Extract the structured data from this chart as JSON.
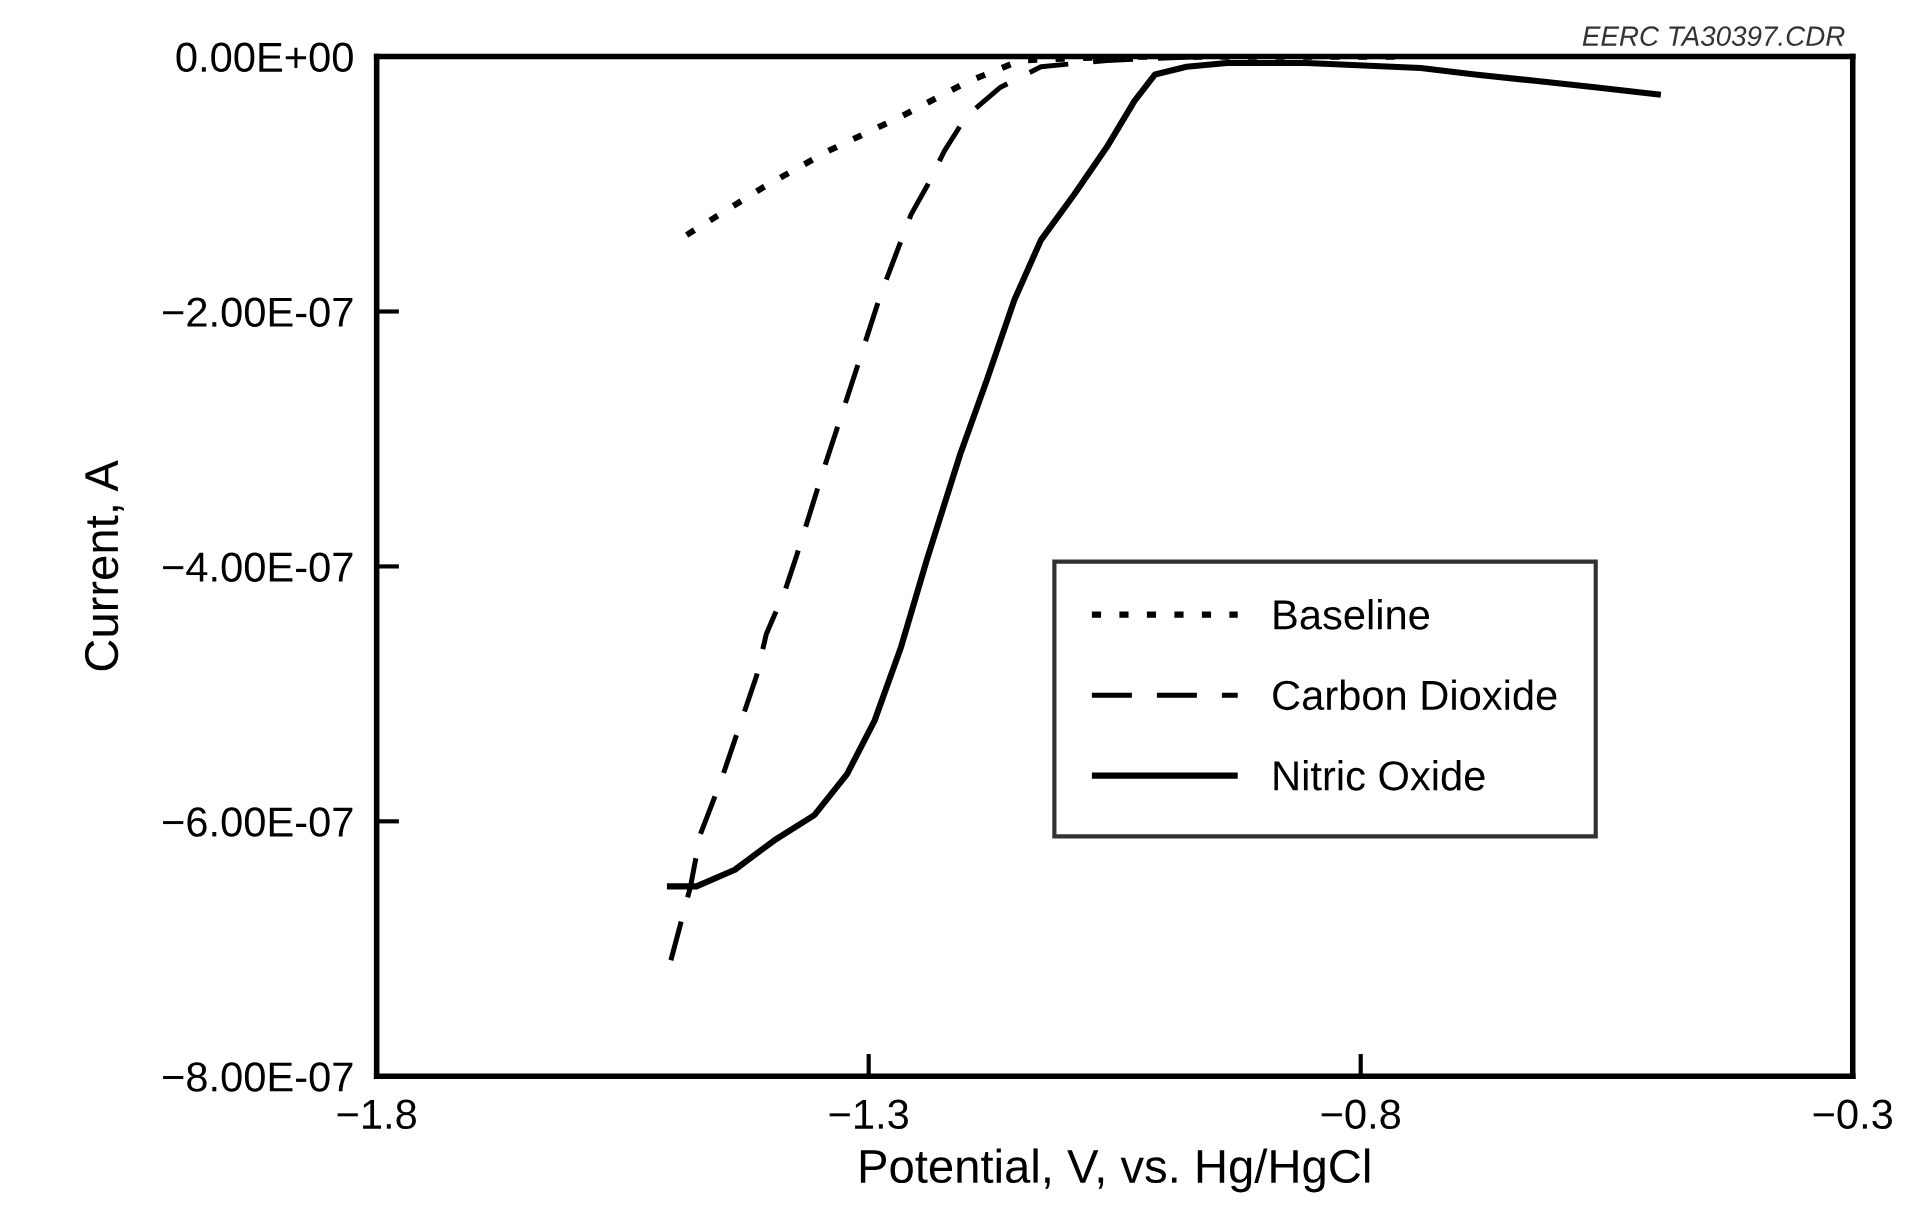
{
  "chart_data": {
    "type": "line",
    "xlabel": "Potential, V, vs. Hg/HgCl",
    "ylabel": "Current, A",
    "annotations": [
      "EERC TA30397.CDR"
    ],
    "xlim": [
      -1.8,
      -0.3
    ],
    "xticks": [
      {
        "value": -1.8,
        "label": "−1.8"
      },
      {
        "value": -1.3,
        "label": "−1.3"
      },
      {
        "value": -0.8,
        "label": "−0.8"
      },
      {
        "value": -0.3,
        "label": "−0.3"
      }
    ],
    "ylim": [
      -8e-07,
      0
    ],
    "yticks": [
      {
        "value": 0,
        "label": "0.00E+00"
      },
      {
        "value": -2e-07,
        "label": "−2.00E-07"
      },
      {
        "value": -4e-07,
        "label": "−4.00E-07"
      },
      {
        "value": -6e-07,
        "label": "−6.00E-07"
      },
      {
        "value": -8e-07,
        "label": "−8.00E-07"
      }
    ],
    "grid": false,
    "legend": "right",
    "series": [
      {
        "name": "Baseline",
        "color": "#000000",
        "line_style": "dotted",
        "x": [
          -1.485,
          -1.406,
          -1.341,
          -1.267,
          -1.2,
          -1.146,
          -1.044,
          -0.759
        ],
        "values": [
          -1.4e-07,
          -1.02e-07,
          -7.4e-08,
          -4.7e-08,
          -2e-08,
          -3e-09,
          0,
          0
        ]
      },
      {
        "name": "Carbon Dioxide",
        "color": "#000000",
        "line_style": "dashed",
        "x": [
          -1.501,
          -1.481,
          -1.471,
          -1.45,
          -1.414,
          -1.404,
          -1.385,
          -1.373,
          -1.345,
          -1.314,
          -1.288,
          -1.257,
          -1.241,
          -1.223,
          -1.201,
          -1.166,
          -1.125,
          -1.058,
          -0.963
        ],
        "values": [
          -7.09e-07,
          -6.51e-07,
          -6.1e-07,
          -5.68e-07,
          -4.86e-07,
          -4.53e-07,
          -4.19e-07,
          -3.91e-07,
          -3.22e-07,
          -2.49e-07,
          -1.87e-07,
          -1.24e-07,
          -1.02e-07,
          -7.4e-08,
          -4.7e-08,
          -2.4e-08,
          -8e-09,
          -3e-09,
          0
        ]
      },
      {
        "name": "Nitric Oxide",
        "color": "#000000",
        "line_style": "solid",
        "x": [
          -1.505,
          -1.475,
          -1.436,
          -1.396,
          -1.355,
          -1.322,
          -1.294,
          -1.267,
          -1.241,
          -1.207,
          -1.18,
          -1.152,
          -1.125,
          -1.091,
          -1.058,
          -1.03,
          -1.009,
          -0.977,
          -0.936,
          -0.855,
          -0.739,
          -0.684,
          -0.623,
          -0.562,
          -0.495
        ],
        "values": [
          -6.51e-07,
          -6.51e-07,
          -6.38e-07,
          -6.15e-07,
          -5.95e-07,
          -5.63e-07,
          -5.21e-07,
          -4.63e-07,
          -3.95e-07,
          -3.12e-07,
          -2.54e-07,
          -1.91e-07,
          -1.44e-07,
          -1.08e-07,
          -7.1e-08,
          -3.5e-08,
          -1.4e-08,
          -8e-09,
          -5e-09,
          -5e-09,
          -9e-09,
          -1.4e-08,
          -1.9e-08,
          -2.4e-08,
          -3e-08
        ]
      }
    ]
  }
}
